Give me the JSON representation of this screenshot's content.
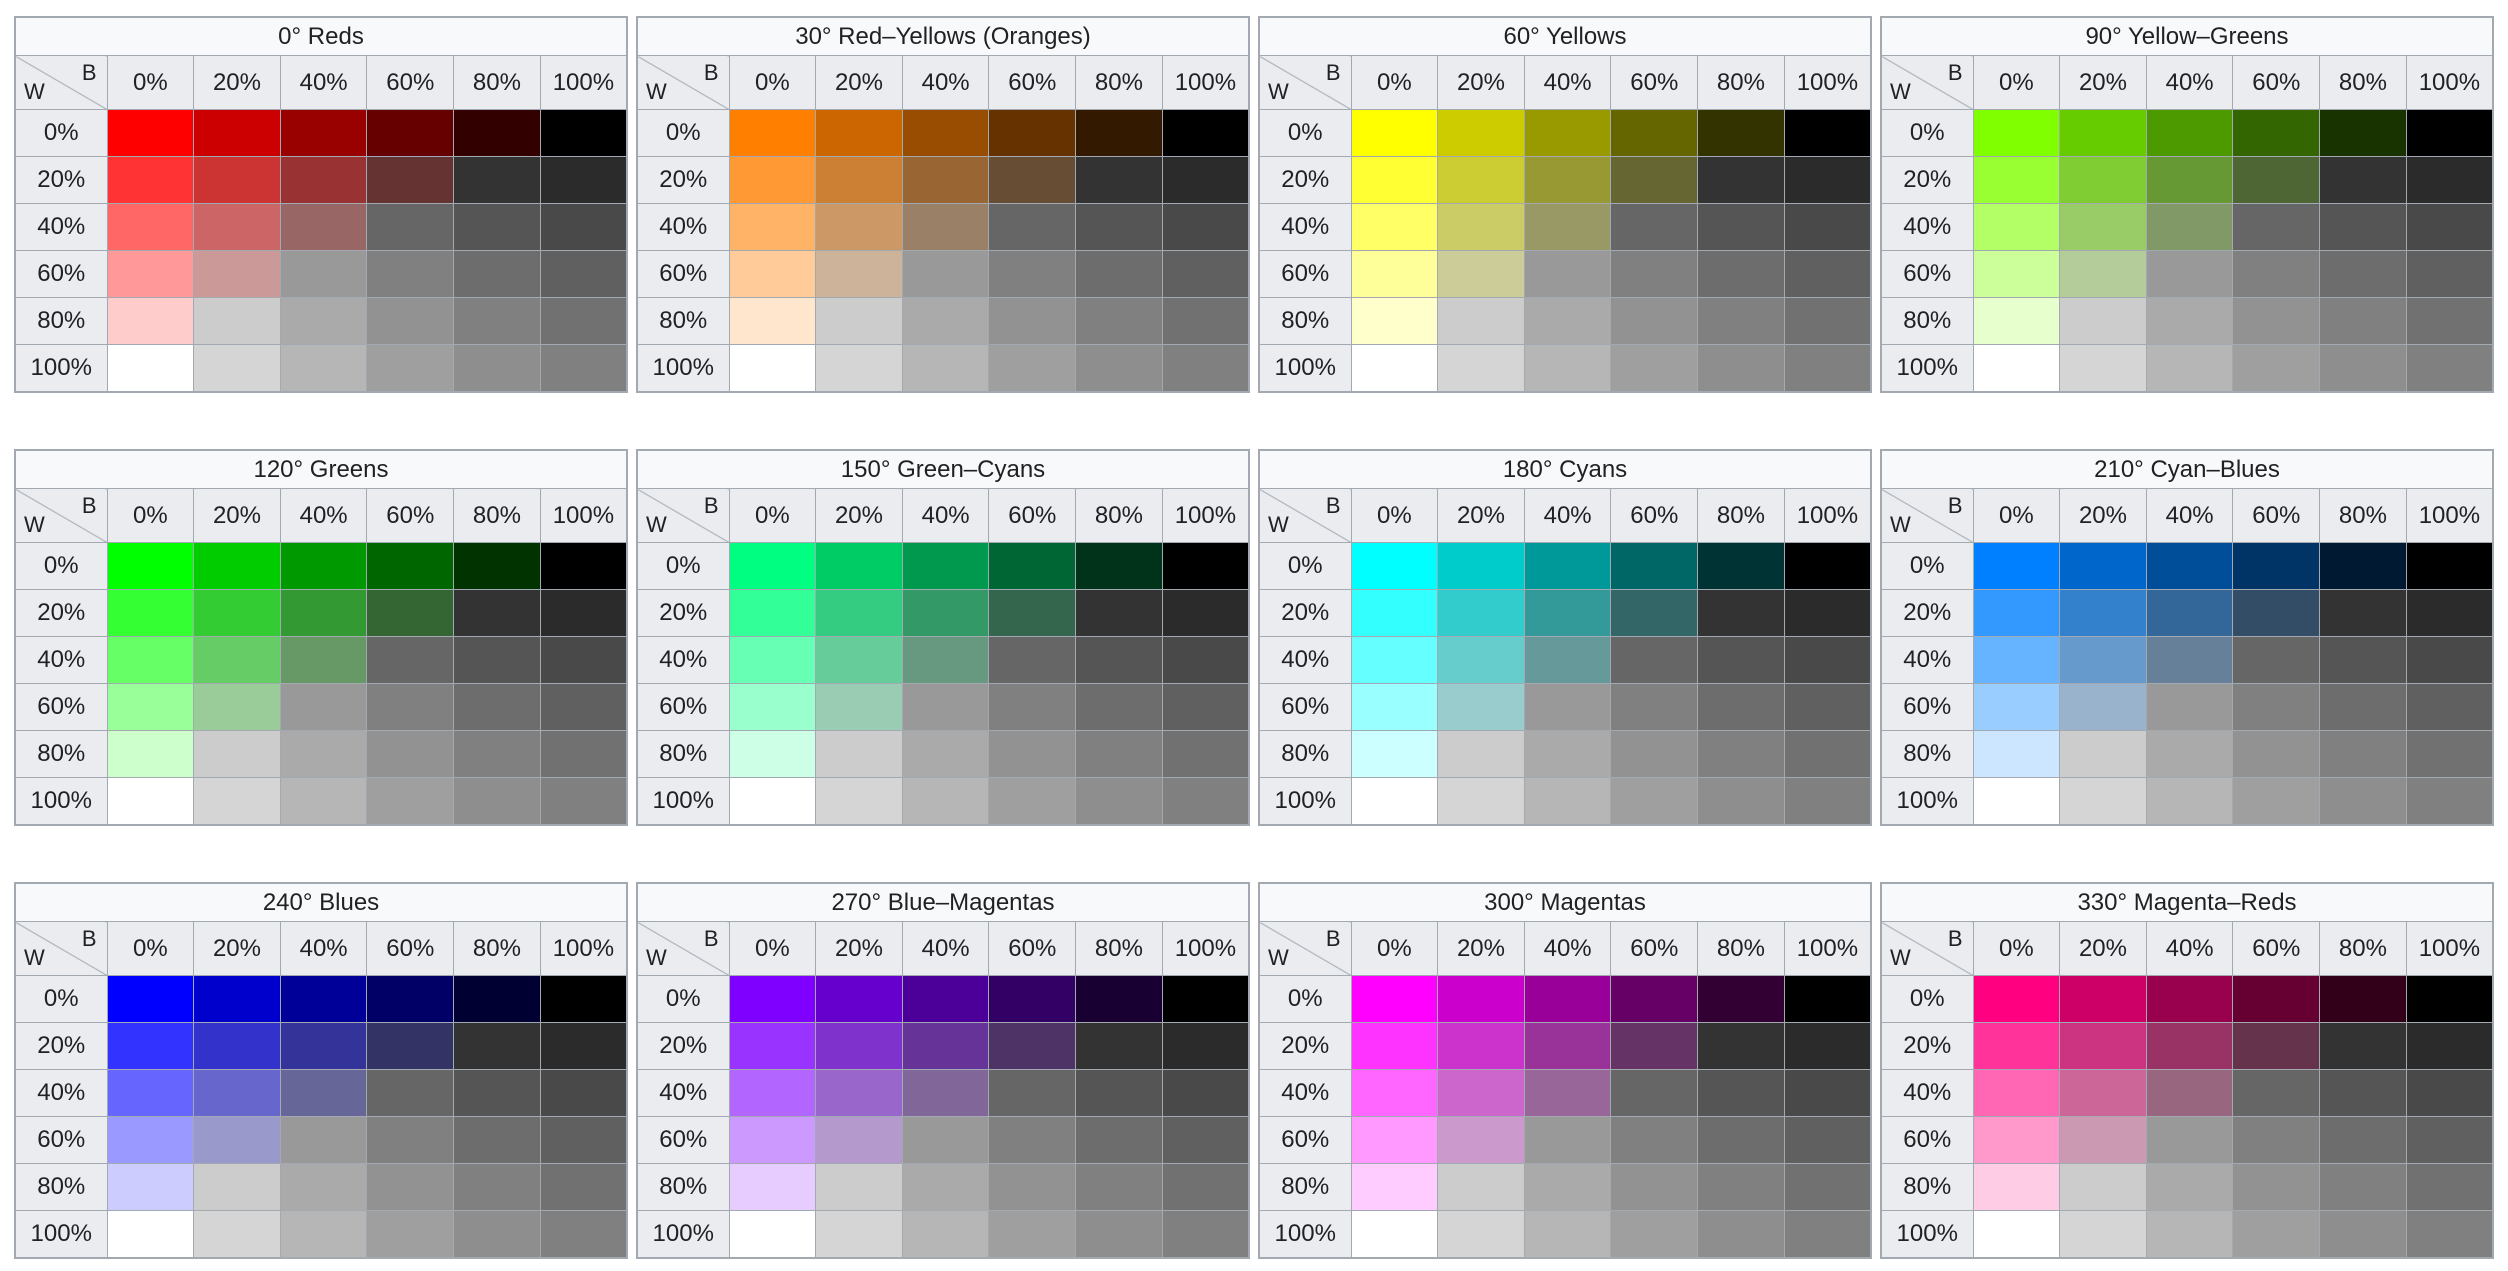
{
  "tables": [
    {
      "title": "0° Reds",
      "hue": 0,
      "corner": {
        "top": "B",
        "bottom": "W"
      },
      "columns": [
        "0%",
        "20%",
        "40%",
        "60%",
        "80%",
        "100%"
      ],
      "rows": [
        "0%",
        "20%",
        "40%",
        "60%",
        "80%",
        "100%"
      ]
    },
    {
      "title": "30° Red–Yellows (Oranges)",
      "hue": 30,
      "corner": {
        "top": "B",
        "bottom": "W"
      },
      "columns": [
        "0%",
        "20%",
        "40%",
        "60%",
        "80%",
        "100%"
      ],
      "rows": [
        "0%",
        "20%",
        "40%",
        "60%",
        "80%",
        "100%"
      ]
    },
    {
      "title": "60° Yellows",
      "hue": 60,
      "corner": {
        "top": "B",
        "bottom": "W"
      },
      "columns": [
        "0%",
        "20%",
        "40%",
        "60%",
        "80%",
        "100%"
      ],
      "rows": [
        "0%",
        "20%",
        "40%",
        "60%",
        "80%",
        "100%"
      ]
    },
    {
      "title": "90° Yellow–Greens",
      "hue": 90,
      "corner": {
        "top": "B",
        "bottom": "W"
      },
      "columns": [
        "0%",
        "20%",
        "40%",
        "60%",
        "80%",
        "100%"
      ],
      "rows": [
        "0%",
        "20%",
        "40%",
        "60%",
        "80%",
        "100%"
      ]
    },
    {
      "title": "120° Greens",
      "hue": 120,
      "corner": {
        "top": "B",
        "bottom": "W"
      },
      "columns": [
        "0%",
        "20%",
        "40%",
        "60%",
        "80%",
        "100%"
      ],
      "rows": [
        "0%",
        "20%",
        "40%",
        "60%",
        "80%",
        "100%"
      ]
    },
    {
      "title": "150° Green–Cyans",
      "hue": 150,
      "corner": {
        "top": "B",
        "bottom": "W"
      },
      "columns": [
        "0%",
        "20%",
        "40%",
        "60%",
        "80%",
        "100%"
      ],
      "rows": [
        "0%",
        "20%",
        "40%",
        "60%",
        "80%",
        "100%"
      ]
    },
    {
      "title": "180° Cyans",
      "hue": 180,
      "corner": {
        "top": "B",
        "bottom": "W"
      },
      "columns": [
        "0%",
        "20%",
        "40%",
        "60%",
        "80%",
        "100%"
      ],
      "rows": [
        "0%",
        "20%",
        "40%",
        "60%",
        "80%",
        "100%"
      ]
    },
    {
      "title": "210° Cyan–Blues",
      "hue": 210,
      "corner": {
        "top": "B",
        "bottom": "W"
      },
      "columns": [
        "0%",
        "20%",
        "40%",
        "60%",
        "80%",
        "100%"
      ],
      "rows": [
        "0%",
        "20%",
        "40%",
        "60%",
        "80%",
        "100%"
      ]
    },
    {
      "title": "240° Blues",
      "hue": 240,
      "corner": {
        "top": "B",
        "bottom": "W"
      },
      "columns": [
        "0%",
        "20%",
        "40%",
        "60%",
        "80%",
        "100%"
      ],
      "rows": [
        "0%",
        "20%",
        "40%",
        "60%",
        "80%",
        "100%"
      ]
    },
    {
      "title": "270° Blue–Magentas",
      "hue": 270,
      "corner": {
        "top": "B",
        "bottom": "W"
      },
      "columns": [
        "0%",
        "20%",
        "40%",
        "60%",
        "80%",
        "100%"
      ],
      "rows": [
        "0%",
        "20%",
        "40%",
        "60%",
        "80%",
        "100%"
      ]
    },
    {
      "title": "300° Magentas",
      "hue": 300,
      "corner": {
        "top": "B",
        "bottom": "W"
      },
      "columns": [
        "0%",
        "20%",
        "40%",
        "60%",
        "80%",
        "100%"
      ],
      "rows": [
        "0%",
        "20%",
        "40%",
        "60%",
        "80%",
        "100%"
      ]
    },
    {
      "title": "330° Magenta–Reds",
      "hue": 330,
      "corner": {
        "top": "B",
        "bottom": "W"
      },
      "columns": [
        "0%",
        "20%",
        "40%",
        "60%",
        "80%",
        "100%"
      ],
      "rows": [
        "0%",
        "20%",
        "40%",
        "60%",
        "80%",
        "100%"
      ]
    }
  ]
}
